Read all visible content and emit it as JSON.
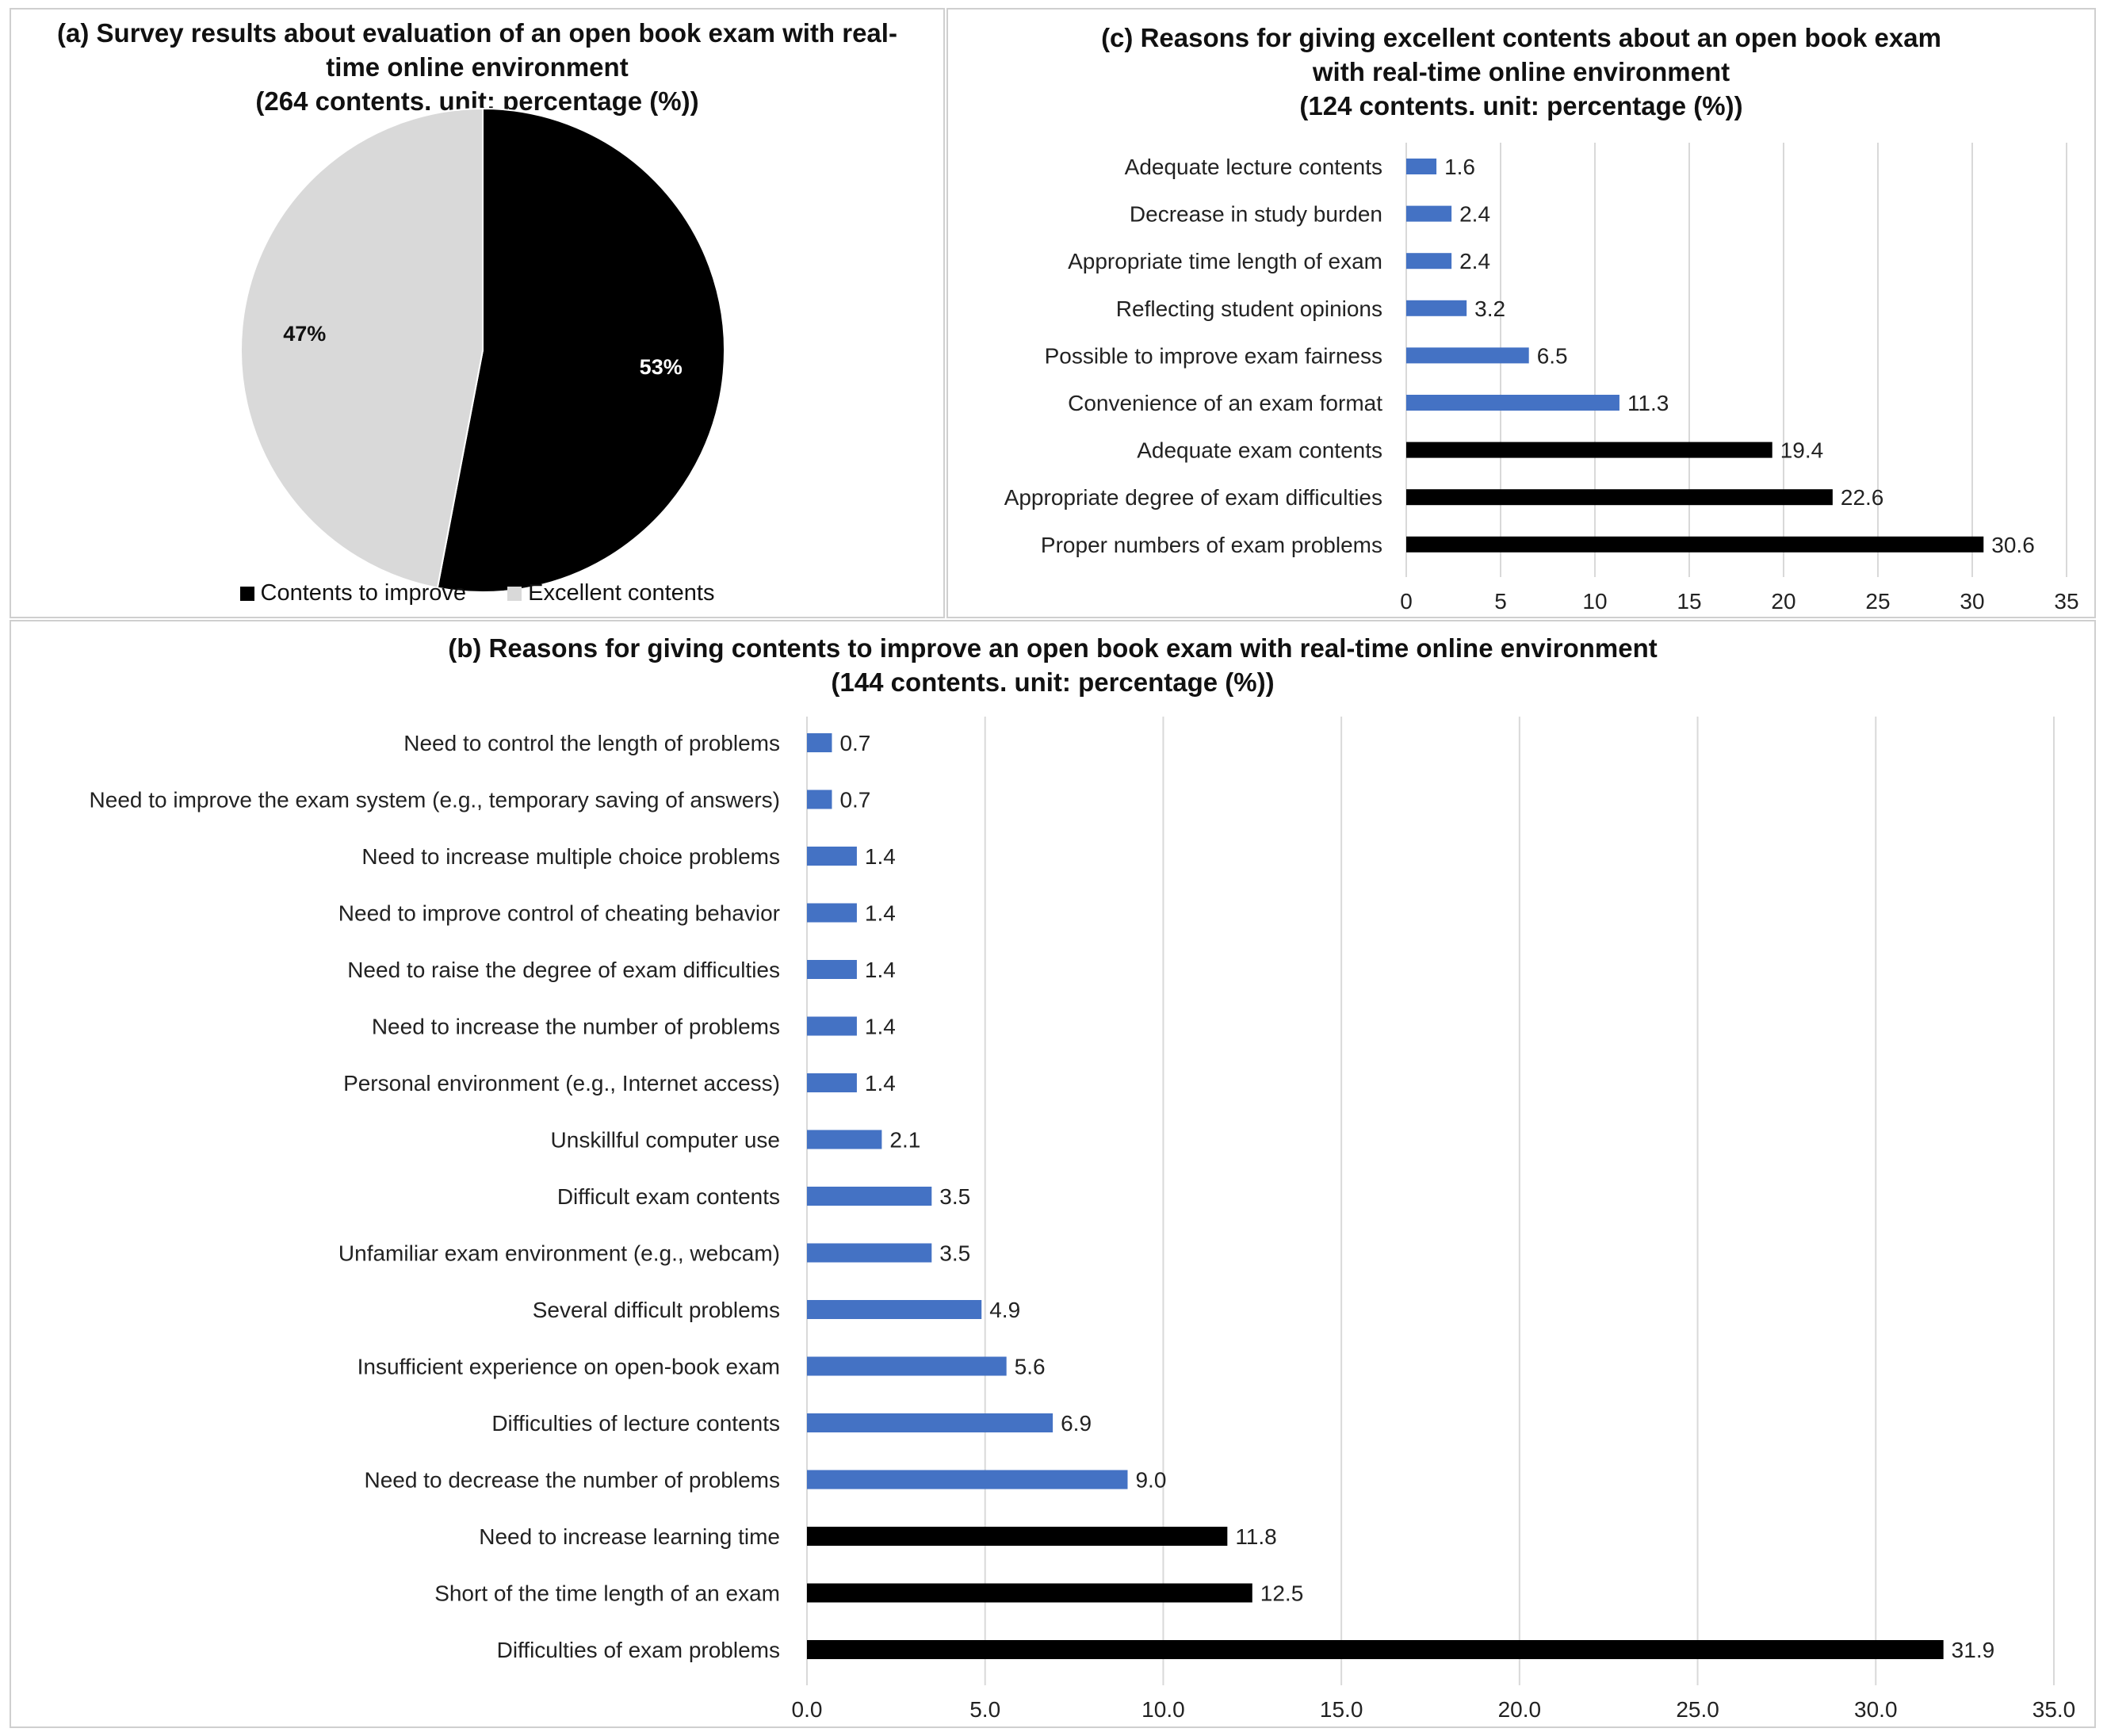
{
  "colors": {
    "highlight": "#000000",
    "normal": "#4472C4",
    "pie_improve": "#000000",
    "pie_excellent": "#D9D9D9",
    "grid": "#D9D9D9"
  },
  "chart_data": [
    {
      "id": "a",
      "type": "pie",
      "title_lines": [
        "(a) Survey results about evaluation of an open book exam with real-",
        "time online  environment",
        "(264 contents. unit: percentage (%))"
      ],
      "slices": [
        {
          "name": "Contents to improve",
          "value": 53,
          "label": "53%",
          "color": "#000000"
        },
        {
          "name": "Excellent contents",
          "value": 47,
          "label": "47%",
          "color": "#D9D9D9"
        }
      ],
      "legend": [
        "Contents to improve",
        "Excellent contents"
      ]
    },
    {
      "id": "c",
      "type": "bar",
      "orientation": "horizontal",
      "title_lines": [
        "(c) Reasons for giving excellent contents about an open book exam",
        "with real-time online environment",
        "(124 contents. unit: percentage (%))"
      ],
      "categories": [
        "Adequate lecture contents",
        "Decrease in study burden",
        "Appropriate time length of exam",
        "Reflecting student opinions",
        "Possible to improve exam fairness",
        "Convenience of an exam format",
        "Adequate exam contents",
        "Appropriate degree of exam difficulties",
        "Proper numbers of exam problems"
      ],
      "values": [
        1.6,
        2.4,
        2.4,
        3.2,
        6.5,
        11.3,
        19.4,
        22.6,
        30.6
      ],
      "value_labels": [
        "1.6",
        "2.4",
        "2.4",
        "3.2",
        "6.5",
        "11.3",
        "19.4",
        "22.6",
        "30.6"
      ],
      "highlighted": [
        false,
        false,
        false,
        false,
        false,
        false,
        true,
        true,
        true
      ],
      "xlim": [
        0,
        35
      ],
      "xticks": [
        "0",
        "5",
        "10",
        "15",
        "20",
        "25",
        "30",
        "35"
      ],
      "xlabel": "",
      "ylabel": "",
      "grid": true
    },
    {
      "id": "b",
      "type": "bar",
      "orientation": "horizontal",
      "title_lines": [
        "(b) Reasons for giving contents to improve an open book exam with real-time online environment",
        "(144 contents. unit: percentage (%))"
      ],
      "categories": [
        "Need to control the length of problems",
        "Need to improve the exam system (e.g., temporary saving of answers)",
        "Need to increase multiple choice problems",
        "Need to improve control of cheating behavior",
        "Need to raise the degree of exam difficulties",
        "Need to increase the number of problems",
        "Personal environment (e.g., Internet access)",
        "Unskillful computer use",
        "Difficult exam contents",
        "Unfamiliar exam environment (e.g., webcam)",
        "Several difficult problems",
        "Insufficient experience on open-book exam",
        "Difficulties of lecture contents",
        "Need to decrease the number of problems",
        "Need to increase learning time",
        "Short of the time length of an exam",
        "Difficulties of exam problems"
      ],
      "values": [
        0.7,
        0.7,
        1.4,
        1.4,
        1.4,
        1.4,
        1.4,
        2.1,
        3.5,
        3.5,
        4.9,
        5.6,
        6.9,
        9.0,
        11.8,
        12.5,
        31.9
      ],
      "value_labels": [
        "0.7",
        "0.7",
        "1.4",
        "1.4",
        "1.4",
        "1.4",
        "1.4",
        "2.1",
        "3.5",
        "3.5",
        "4.9",
        "5.6",
        "6.9",
        "9.0",
        "11.8",
        "12.5",
        "31.9"
      ],
      "highlighted": [
        false,
        false,
        false,
        false,
        false,
        false,
        false,
        false,
        false,
        false,
        false,
        false,
        false,
        false,
        true,
        true,
        true
      ],
      "xlim": [
        0,
        35
      ],
      "xticks": [
        "0.0",
        "5.0",
        "10.0",
        "15.0",
        "20.0",
        "25.0",
        "30.0",
        "35.0"
      ],
      "xlabel": "",
      "ylabel": "",
      "grid": true
    }
  ]
}
